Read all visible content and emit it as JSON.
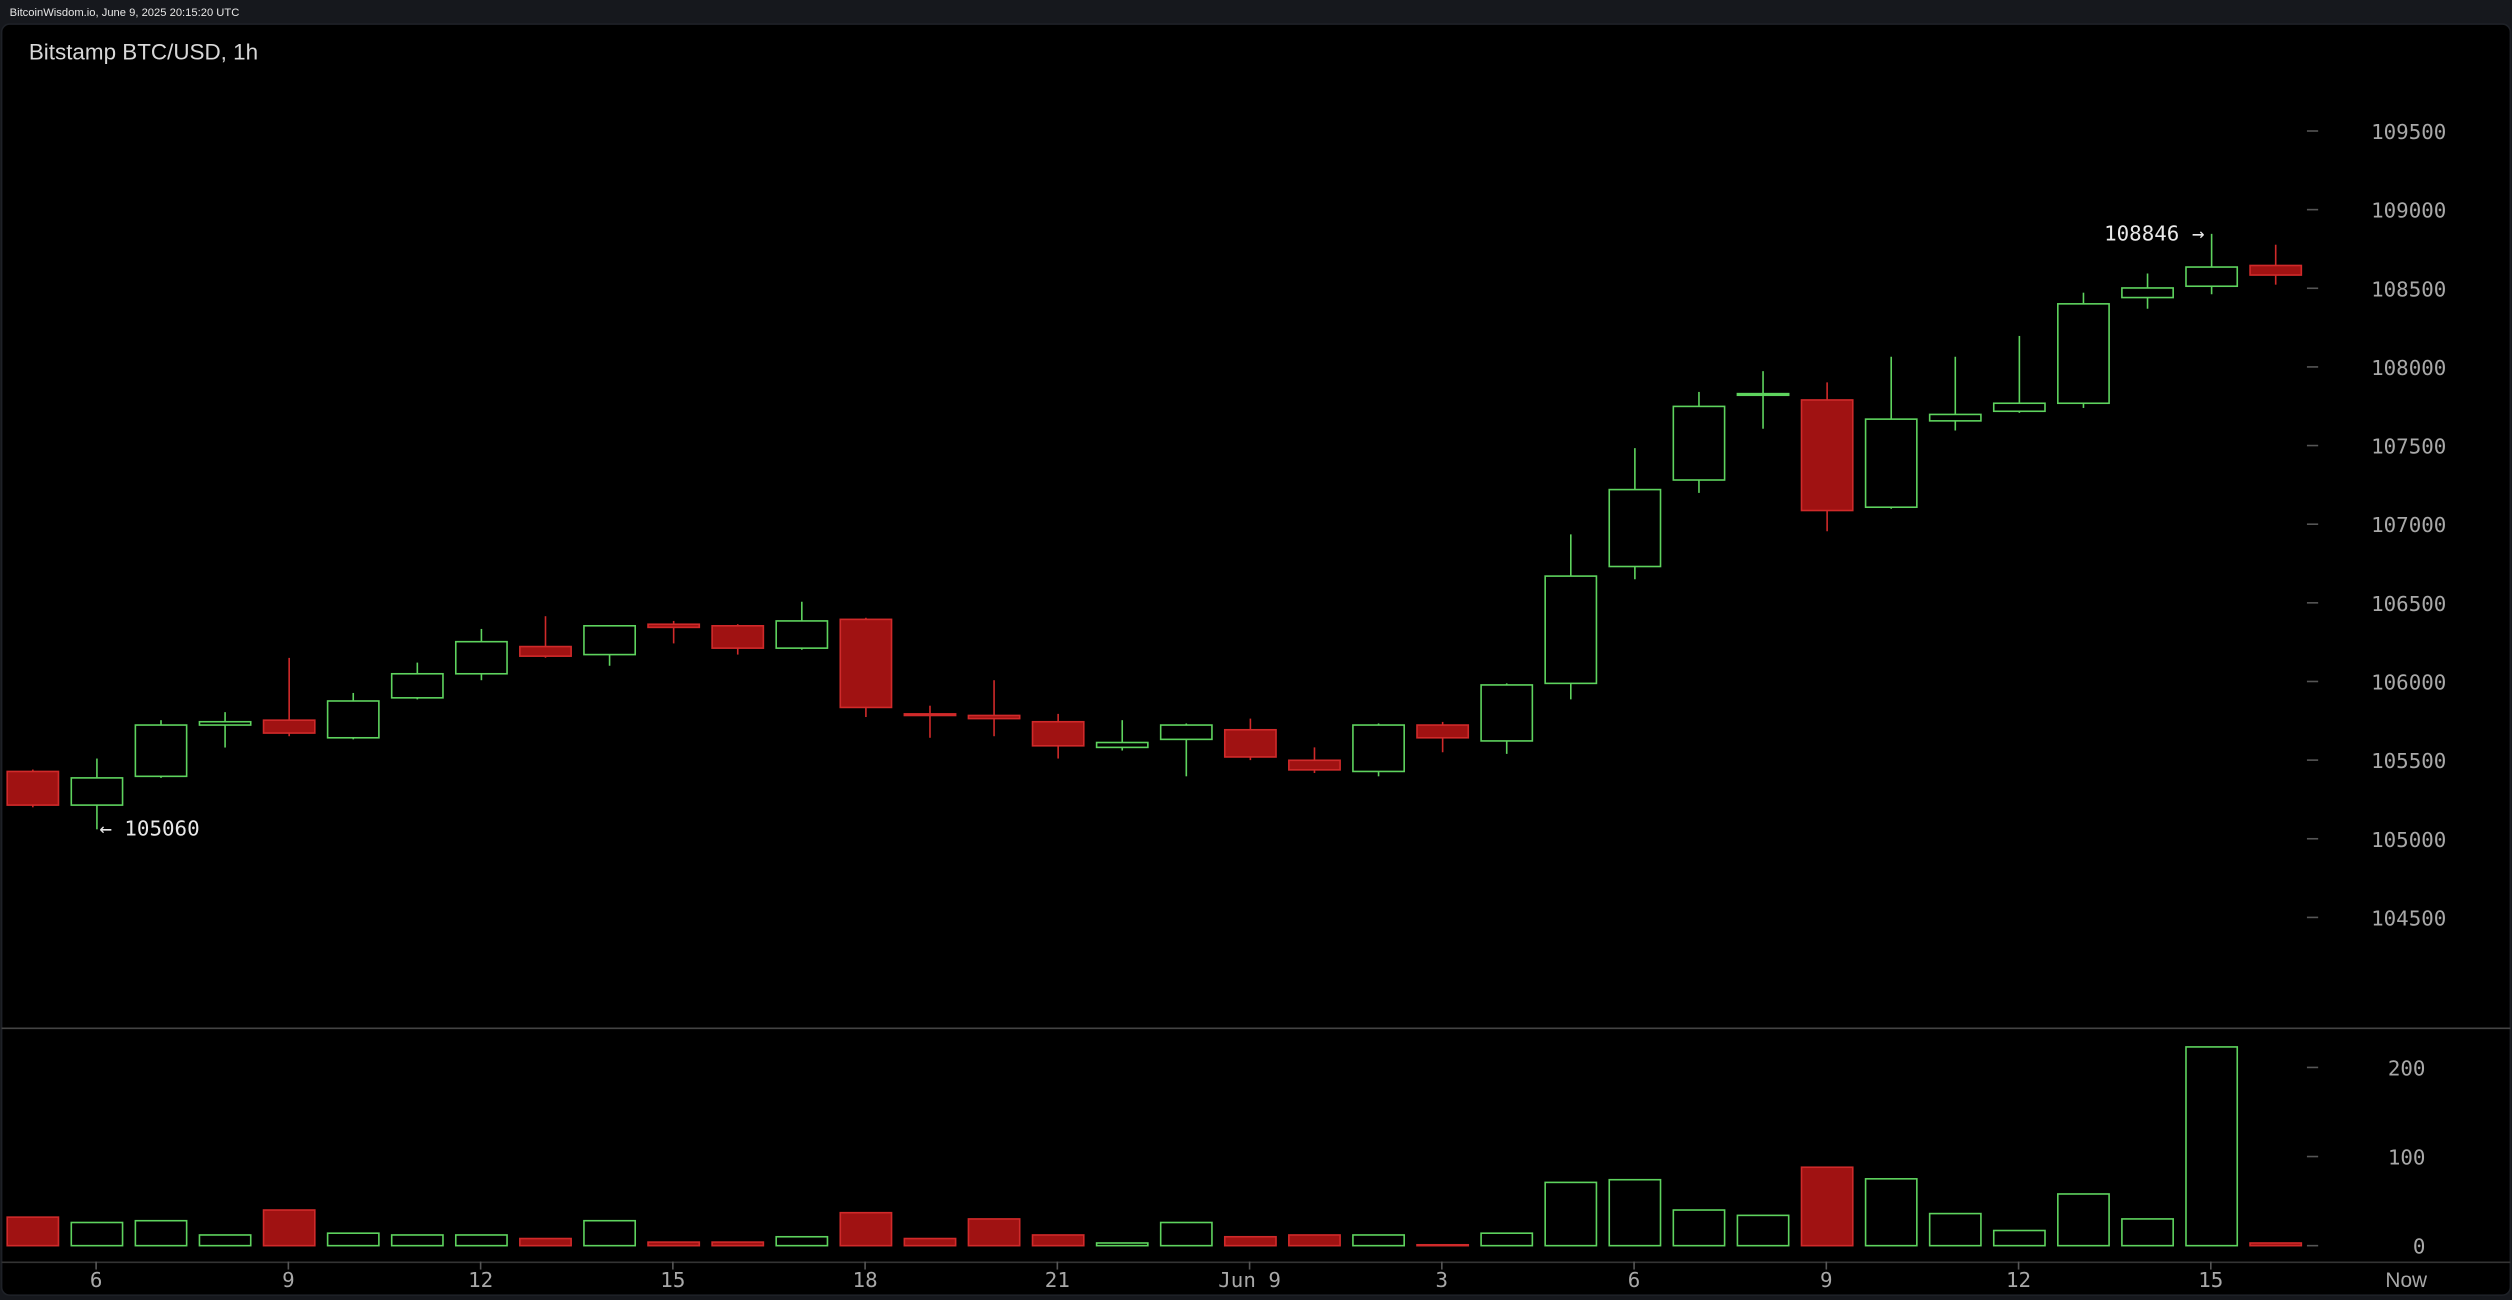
{
  "header": "BitcoinWisdom.io, June 9, 2025 20:15:20 UTC",
  "chart_data": {
    "type": "candlestick",
    "title": "Bitstamp BTC/USD, 1h",
    "categories": [
      null,
      "6",
      null,
      null,
      "9",
      null,
      null,
      "12",
      null,
      null,
      "15",
      null,
      null,
      "18",
      null,
      null,
      "21",
      null,
      null,
      "Jun 9",
      null,
      null,
      "3",
      null,
      null,
      "6",
      null,
      null,
      "9",
      null,
      null,
      "12",
      null,
      null,
      "15",
      null
    ],
    "open": [
      105428,
      105214,
      105397,
      105723,
      105754,
      105642,
      105896,
      106049,
      106222,
      106171,
      106364,
      106354,
      106212,
      106395,
      105794,
      105784,
      105744,
      105581,
      105632,
      105693,
      105499,
      105428,
      105723,
      105622,
      105988,
      106731,
      107281,
      107820,
      107790,
      107108,
      107657,
      107718,
      107769,
      108441,
      108513,
      108645
    ],
    "high": [
      105440,
      105510,
      105754,
      105805,
      106150,
      105927,
      106120,
      106334,
      106415,
      106354,
      106385,
      106364,
      106507,
      106405,
      105846,
      106008,
      105794,
      105754,
      105733,
      105764,
      105581,
      105733,
      105743,
      105988,
      106935,
      107484,
      107841,
      107973,
      107902,
      108065,
      108065,
      108197,
      108472,
      108594,
      108846,
      108777
    ],
    "low": [
      105200,
      105060,
      105387,
      105580,
      105652,
      105632,
      105886,
      106008,
      106151,
      106100,
      106242,
      106171,
      106202,
      105774,
      105642,
      105652,
      105510,
      105561,
      105397,
      105500,
      105418,
      105397,
      105550,
      105540,
      105886,
      106650,
      107199,
      107607,
      106955,
      107098,
      107596,
      107708,
      107739,
      108370,
      108462,
      108523
    ],
    "close": [
      105214,
      105387,
      105723,
      105744,
      105672,
      105876,
      106049,
      106253,
      106161,
      106354,
      106344,
      106212,
      106385,
      105835,
      105784,
      105764,
      105591,
      105612,
      105723,
      105520,
      105438,
      105723,
      105642,
      105978,
      106670,
      107220,
      107749,
      107830,
      107087,
      107668,
      107698,
      107769,
      108401,
      108502,
      108635,
      108584
    ],
    "volume": [
      32,
      26,
      28,
      12,
      40,
      14,
      12,
      12,
      8,
      28,
      4,
      4,
      10,
      37,
      8,
      30,
      12,
      3,
      26,
      10,
      12,
      12,
      1,
      14,
      71,
      74,
      40,
      34,
      88,
      75,
      36,
      17,
      58,
      30,
      223,
      3
    ],
    "ylim": [
      103800,
      110180
    ],
    "yticks": [
      104500,
      105000,
      105500,
      106000,
      106500,
      107000,
      107500,
      108000,
      108500,
      109000,
      109500
    ],
    "volume_ylim": [
      -16,
      243
    ],
    "volume_yticks": [
      0,
      100,
      200
    ],
    "up_color": "#5ed35e",
    "down_color": "#a01212",
    "annotations": [
      {
        "label": "← 105060"
      },
      {
        "label": "108846 →"
      }
    ],
    "now_label": "Now"
  }
}
